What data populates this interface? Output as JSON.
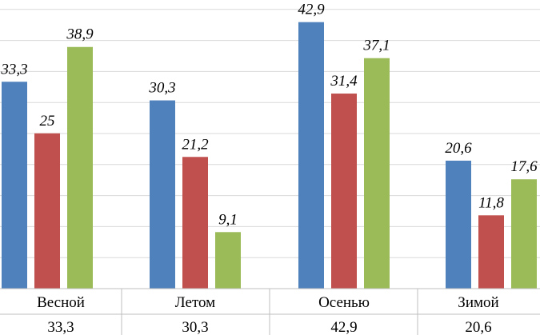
{
  "chart_data": {
    "type": "bar",
    "categories": [
      "Весной",
      "Летом",
      "Осенью",
      "Зимой"
    ],
    "series": [
      {
        "values": [
          33.3,
          30.3,
          42.9,
          20.6
        ],
        "color": "#4f81bd"
      },
      {
        "values": [
          25,
          21.2,
          31.4,
          11.8
        ],
        "color": "#c0504d"
      },
      {
        "values": [
          38.9,
          9.1,
          37.1,
          17.6
        ],
        "color": "#9bbb59"
      }
    ],
    "value_labels": [
      [
        "33,3",
        "30,3",
        "42,9",
        "20,6"
      ],
      [
        "25",
        "21,2",
        "31,4",
        "11,8"
      ],
      [
        "38,9",
        "9,1",
        "37,1",
        "17,6"
      ]
    ],
    "table_row": [
      "33,3",
      "30,3",
      "42,9",
      "20,6"
    ],
    "grid": true,
    "gridline_color": "#d9d9d9"
  }
}
